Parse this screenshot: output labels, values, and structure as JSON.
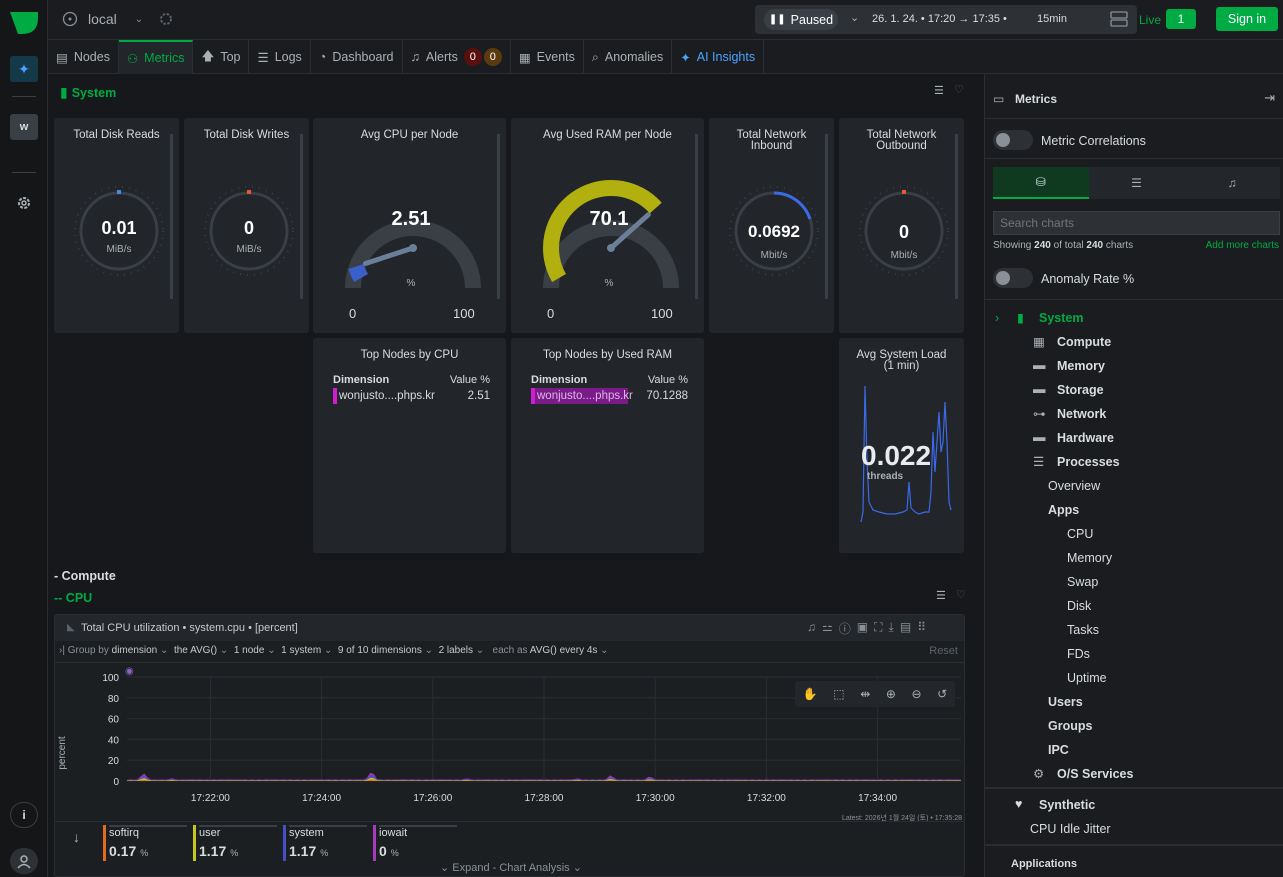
{
  "topbar": {
    "space": "local",
    "paused_label": "Paused",
    "time_range": "26. 1. 24. • 17:20 → 17:35 •",
    "duration": "15min",
    "live_label": "Live",
    "live_count": "1",
    "signin_label": "Sign in"
  },
  "rail": {
    "workspace_letter": "w"
  },
  "tabs": [
    {
      "label": "Nodes"
    },
    {
      "label": "Metrics"
    },
    {
      "label": "Top"
    },
    {
      "label": "Logs"
    },
    {
      "label": "Dashboard"
    },
    {
      "label": "Alerts"
    },
    {
      "label": "Events"
    },
    {
      "label": "Anomalies"
    },
    {
      "label": "AI Insights"
    }
  ],
  "alerts": {
    "critical": "0",
    "warning": "0"
  },
  "system": {
    "section_title": "System",
    "cards": {
      "disk_reads": {
        "title": "Total Disk Reads",
        "value": "0.01",
        "unit": "MiB/s"
      },
      "disk_writes": {
        "title": "Total Disk Writes",
        "value": "0",
        "unit": "MiB/s"
      },
      "cpu": {
        "title": "Avg CPU per Node",
        "value": "2.51",
        "unit": "%",
        "min": "0",
        "max": "100",
        "fraction": 0.025
      },
      "ram": {
        "title": "Avg Used RAM per Node",
        "value": "70.1",
        "unit": "%",
        "min": "0",
        "max": "100",
        "fraction": 0.701
      },
      "net_in": {
        "title": "Total Network Inbound",
        "value": "0.0692",
        "unit": "Mbit/s"
      },
      "net_out": {
        "title": "Total Network Outbound",
        "value": "0",
        "unit": "Mbit/s"
      },
      "top_cpu": {
        "title": "Top Nodes by CPU",
        "col1": "Dimension",
        "col2": "Value %",
        "row_name": "wonjusto....phps.kr",
        "row_value": "2.51"
      },
      "top_ram": {
        "title": "Top Nodes by Used RAM",
        "col1": "Dimension",
        "col2": "Value %",
        "row_name": "wonjusto....phps.kr",
        "row_value": "70.1288"
      },
      "load": {
        "title": "Avg System Load (1 min)",
        "value": "0.022",
        "unit": "threads"
      }
    }
  },
  "compute": {
    "heading": "- Compute",
    "subheading": "-- CPU",
    "chart_header": "Total CPU utilization • system.cpu • [percent]",
    "filters": {
      "group_by": "Group by",
      "group_value": "dimension",
      "agg": "the AVG()",
      "nodes": "1 node",
      "instances": "1 system",
      "dimensions": "9 of 10 dimensions",
      "labels": "2 labels",
      "each_as": "each as",
      "each_value": "AVG() every 4s",
      "reset": "Reset"
    },
    "latest": "Latest: 2026년 1월 24일 (토) • 17:35:28",
    "expand": "Expand - Chart Analysis"
  },
  "chart_data": {
    "type": "area",
    "ylabel": "percent",
    "ylim": [
      0,
      100
    ],
    "yticks": [
      "100",
      "80",
      "60",
      "40",
      "20",
      "0"
    ],
    "xticks": [
      "17:22:00",
      "17:24:00",
      "17:26:00",
      "17:28:00",
      "17:30:00",
      "17:32:00",
      "17:34:00"
    ],
    "x_start_minutes": 20.5,
    "x_end_minutes": 35.5,
    "spikes": [
      {
        "x": 20.8,
        "y": 8
      },
      {
        "x": 21.3,
        "y": 3
      },
      {
        "x": 24.9,
        "y": 10
      },
      {
        "x": 26.6,
        "y": 3
      },
      {
        "x": 28.6,
        "y": 3
      },
      {
        "x": 29.2,
        "y": 6
      },
      {
        "x": 29.9,
        "y": 5
      }
    ],
    "baseline": 1.3,
    "series": [
      {
        "name": "softirq",
        "value": "0.17",
        "unit": "%",
        "color": "#e66a1e"
      },
      {
        "name": "user",
        "value": "1.17",
        "unit": "%",
        "color": "#c7c51f"
      },
      {
        "name": "system",
        "value": "1.17",
        "unit": "%",
        "color": "#4550c7"
      },
      {
        "name": "iowait",
        "value": "0",
        "unit": "%",
        "color": "#a83ac0"
      }
    ]
  },
  "rpanel": {
    "title": "Metrics",
    "correlations": "Metric Correlations",
    "search_placeholder": "Search charts",
    "showing_prefix": "Showing",
    "showing_count": "240",
    "showing_mid": "of total",
    "showing_total": "240",
    "showing_suffix": "charts",
    "add_more": "Add more charts",
    "anomaly_rate": "Anomaly Rate %",
    "tree": {
      "system": "System",
      "compute": "Compute",
      "memory": "Memory",
      "storage": "Storage",
      "network": "Network",
      "hardware": "Hardware",
      "processes": "Processes",
      "overview": "Overview",
      "apps": "Apps",
      "cpu": "CPU",
      "app_memory": "Memory",
      "swap": "Swap",
      "disk": "Disk",
      "tasks": "Tasks",
      "fds": "FDs",
      "uptime": "Uptime",
      "users": "Users",
      "groups": "Groups",
      "ipc": "IPC",
      "os_services": "O/S Services",
      "synthetic": "Synthetic",
      "cpu_idle_jitter": "CPU Idle Jitter",
      "applications": "Applications"
    }
  },
  "colors": {
    "accent": "#00ab44",
    "ai": "#4aa4ff",
    "cpu_gauge": "#3b5fc9",
    "ram_gauge": "#b2b00f",
    "highlight": "#d11cd1"
  }
}
